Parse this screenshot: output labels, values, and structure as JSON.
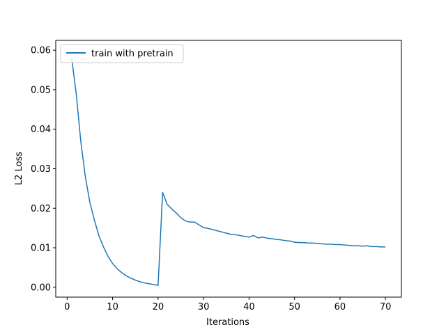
{
  "chart_data": {
    "type": "line",
    "xlabel": "Iterations",
    "ylabel": "L2 Loss",
    "xlim": [
      -2.5,
      73.5
    ],
    "ylim": [
      -0.0025,
      0.0625
    ],
    "xticks": [
      0,
      10,
      20,
      30,
      40,
      50,
      60,
      70
    ],
    "yticks": [
      0.0,
      0.01,
      0.02,
      0.03,
      0.04,
      0.05,
      0.06
    ],
    "ytick_labels": [
      "0.00",
      "0.01",
      "0.02",
      "0.03",
      "0.04",
      "0.05",
      "0.06"
    ],
    "grid": false,
    "legend": {
      "placement": "upper-left",
      "entries": [
        "train with pretrain"
      ]
    },
    "colors": {
      "series": "#1f77b4"
    },
    "series": [
      {
        "name": "train with pretrain",
        "x": [
          1,
          2,
          3,
          4,
          5,
          6,
          7,
          8,
          9,
          10,
          11,
          12,
          13,
          14,
          15,
          16,
          17,
          18,
          19,
          20,
          21,
          22,
          23,
          24,
          25,
          26,
          27,
          28,
          29,
          30,
          31,
          32,
          33,
          34,
          35,
          36,
          37,
          38,
          39,
          40,
          41,
          42,
          43,
          44,
          45,
          46,
          47,
          48,
          49,
          50,
          51,
          52,
          53,
          54,
          55,
          56,
          57,
          58,
          59,
          60,
          61,
          62,
          63,
          64,
          65,
          66,
          67,
          68,
          69,
          70
        ],
        "y": [
          0.058,
          0.049,
          0.037,
          0.028,
          0.0215,
          0.017,
          0.013,
          0.0102,
          0.0078,
          0.006,
          0.0047,
          0.0037,
          0.0029,
          0.0023,
          0.0018,
          0.0014,
          0.0011,
          0.0009,
          0.0007,
          0.0005,
          0.024,
          0.021,
          0.0198,
          0.0188,
          0.0176,
          0.0168,
          0.0165,
          0.0165,
          0.0158,
          0.0151,
          0.0149,
          0.0146,
          0.0143,
          0.014,
          0.0137,
          0.0134,
          0.0133,
          0.0131,
          0.0129,
          0.0127,
          0.0131,
          0.0125,
          0.0127,
          0.0124,
          0.0123,
          0.0121,
          0.012,
          0.0118,
          0.0117,
          0.0114,
          0.0113,
          0.0113,
          0.0112,
          0.0112,
          0.0111,
          0.011,
          0.0109,
          0.0109,
          0.0108,
          0.0108,
          0.0107,
          0.0106,
          0.0105,
          0.0105,
          0.0104,
          0.0105,
          0.0103,
          0.0103,
          0.0102,
          0.0102
        ]
      }
    ]
  }
}
